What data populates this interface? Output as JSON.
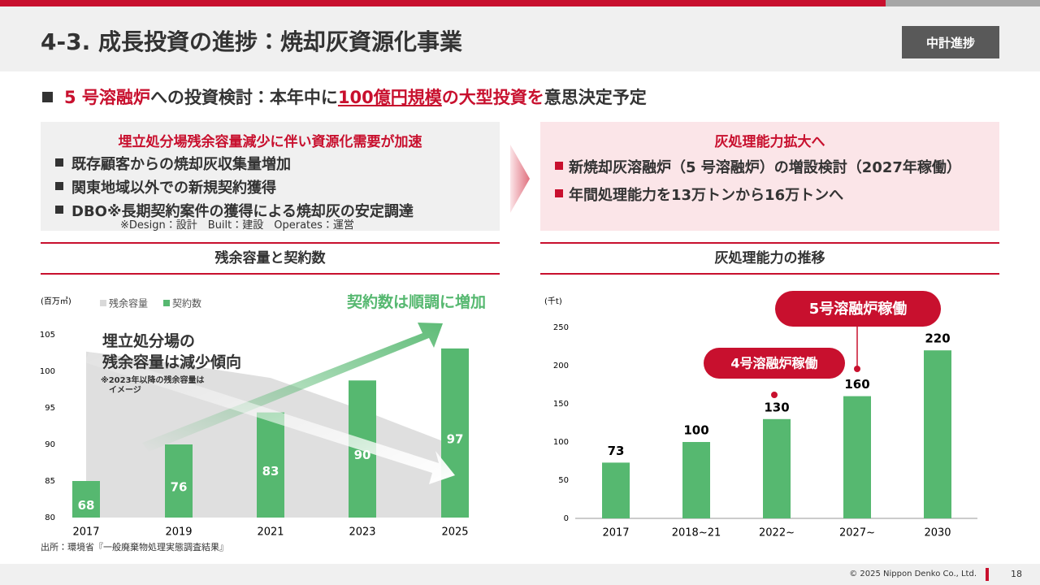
{
  "header": {
    "title": "4-3. 成長投資の進捗：焼却灰資源化事業",
    "badge": "中計進捗"
  },
  "headline": [
    {
      "text": "5 号溶融炉",
      "color": "#c8102e"
    },
    {
      "text": "への投資検討：本年中に"
    },
    {
      "text": "100億円規模",
      "color": "#c8102e",
      "underline": true
    },
    {
      "text": "の大型投資を",
      "color": "#c8102e"
    },
    {
      "text": "意思決定予定"
    }
  ],
  "left_box": {
    "title": "埋立処分場残余容量減少に伴い資源化需要が加速",
    "items": [
      "既存顧客からの焼却灰収集量増加",
      "関東地域以外での新規契約獲得",
      "DBO※長期契約案件の獲得による焼却灰の安定調達"
    ],
    "note": "※Design：設計　Built：建設　Operates：運営"
  },
  "right_box": {
    "title": "灰処理能力拡大へ",
    "items": [
      "新焼却灰溶融炉（5 号溶融炉）の増設検討（2027年稼働）",
      "年間処理能力を13万トンから16万トンへ"
    ]
  },
  "chart_data": [
    {
      "type": "bar",
      "title": "残余容量と契約数",
      "unit": "(百万㎥)",
      "categories": [
        "2017",
        "2019",
        "2021",
        "2023",
        "2025"
      ],
      "ylim": [
        80,
        105
      ],
      "yticks": [
        80,
        85,
        90,
        95,
        100,
        105
      ],
      "y2lim": [
        60,
        100
      ],
      "series": [
        {
          "name": "残余容量",
          "type": "area",
          "color": "#d9d9d9",
          "values": [
            102.7,
            101,
            99.1,
            94.7,
            89.8
          ]
        },
        {
          "name": "契約数",
          "color": "#56b870",
          "axis": "y2",
          "values": [
            68,
            76,
            83,
            90,
            97
          ]
        }
      ],
      "annotations": [
        "埋立処分場の\n残余容量は減少傾向",
        "※2023年以降の残余容量は\n　イメージ",
        "契約数は順調に増加"
      ],
      "source": "出所：環境省『一般廃棄物処理実態調査結果』"
    },
    {
      "type": "bar",
      "title": "灰処理能力の推移",
      "unit": "(千t)",
      "categories": [
        "2017",
        "2018~21",
        "2022~",
        "2027~",
        "2030"
      ],
      "ylim": [
        0,
        250
      ],
      "yticks": [
        0,
        50,
        100,
        150,
        200,
        250
      ],
      "series": [
        {
          "name": "灰処理能力",
          "color": "#56b870",
          "values": [
            73,
            100,
            130,
            160,
            220
          ]
        }
      ],
      "annotations": [
        "4号溶融炉稼働",
        "5号溶融炉稼働"
      ]
    }
  ],
  "footer": {
    "copyright": "© 2025 Nippon Denko Co., Ltd.",
    "page": 18
  }
}
